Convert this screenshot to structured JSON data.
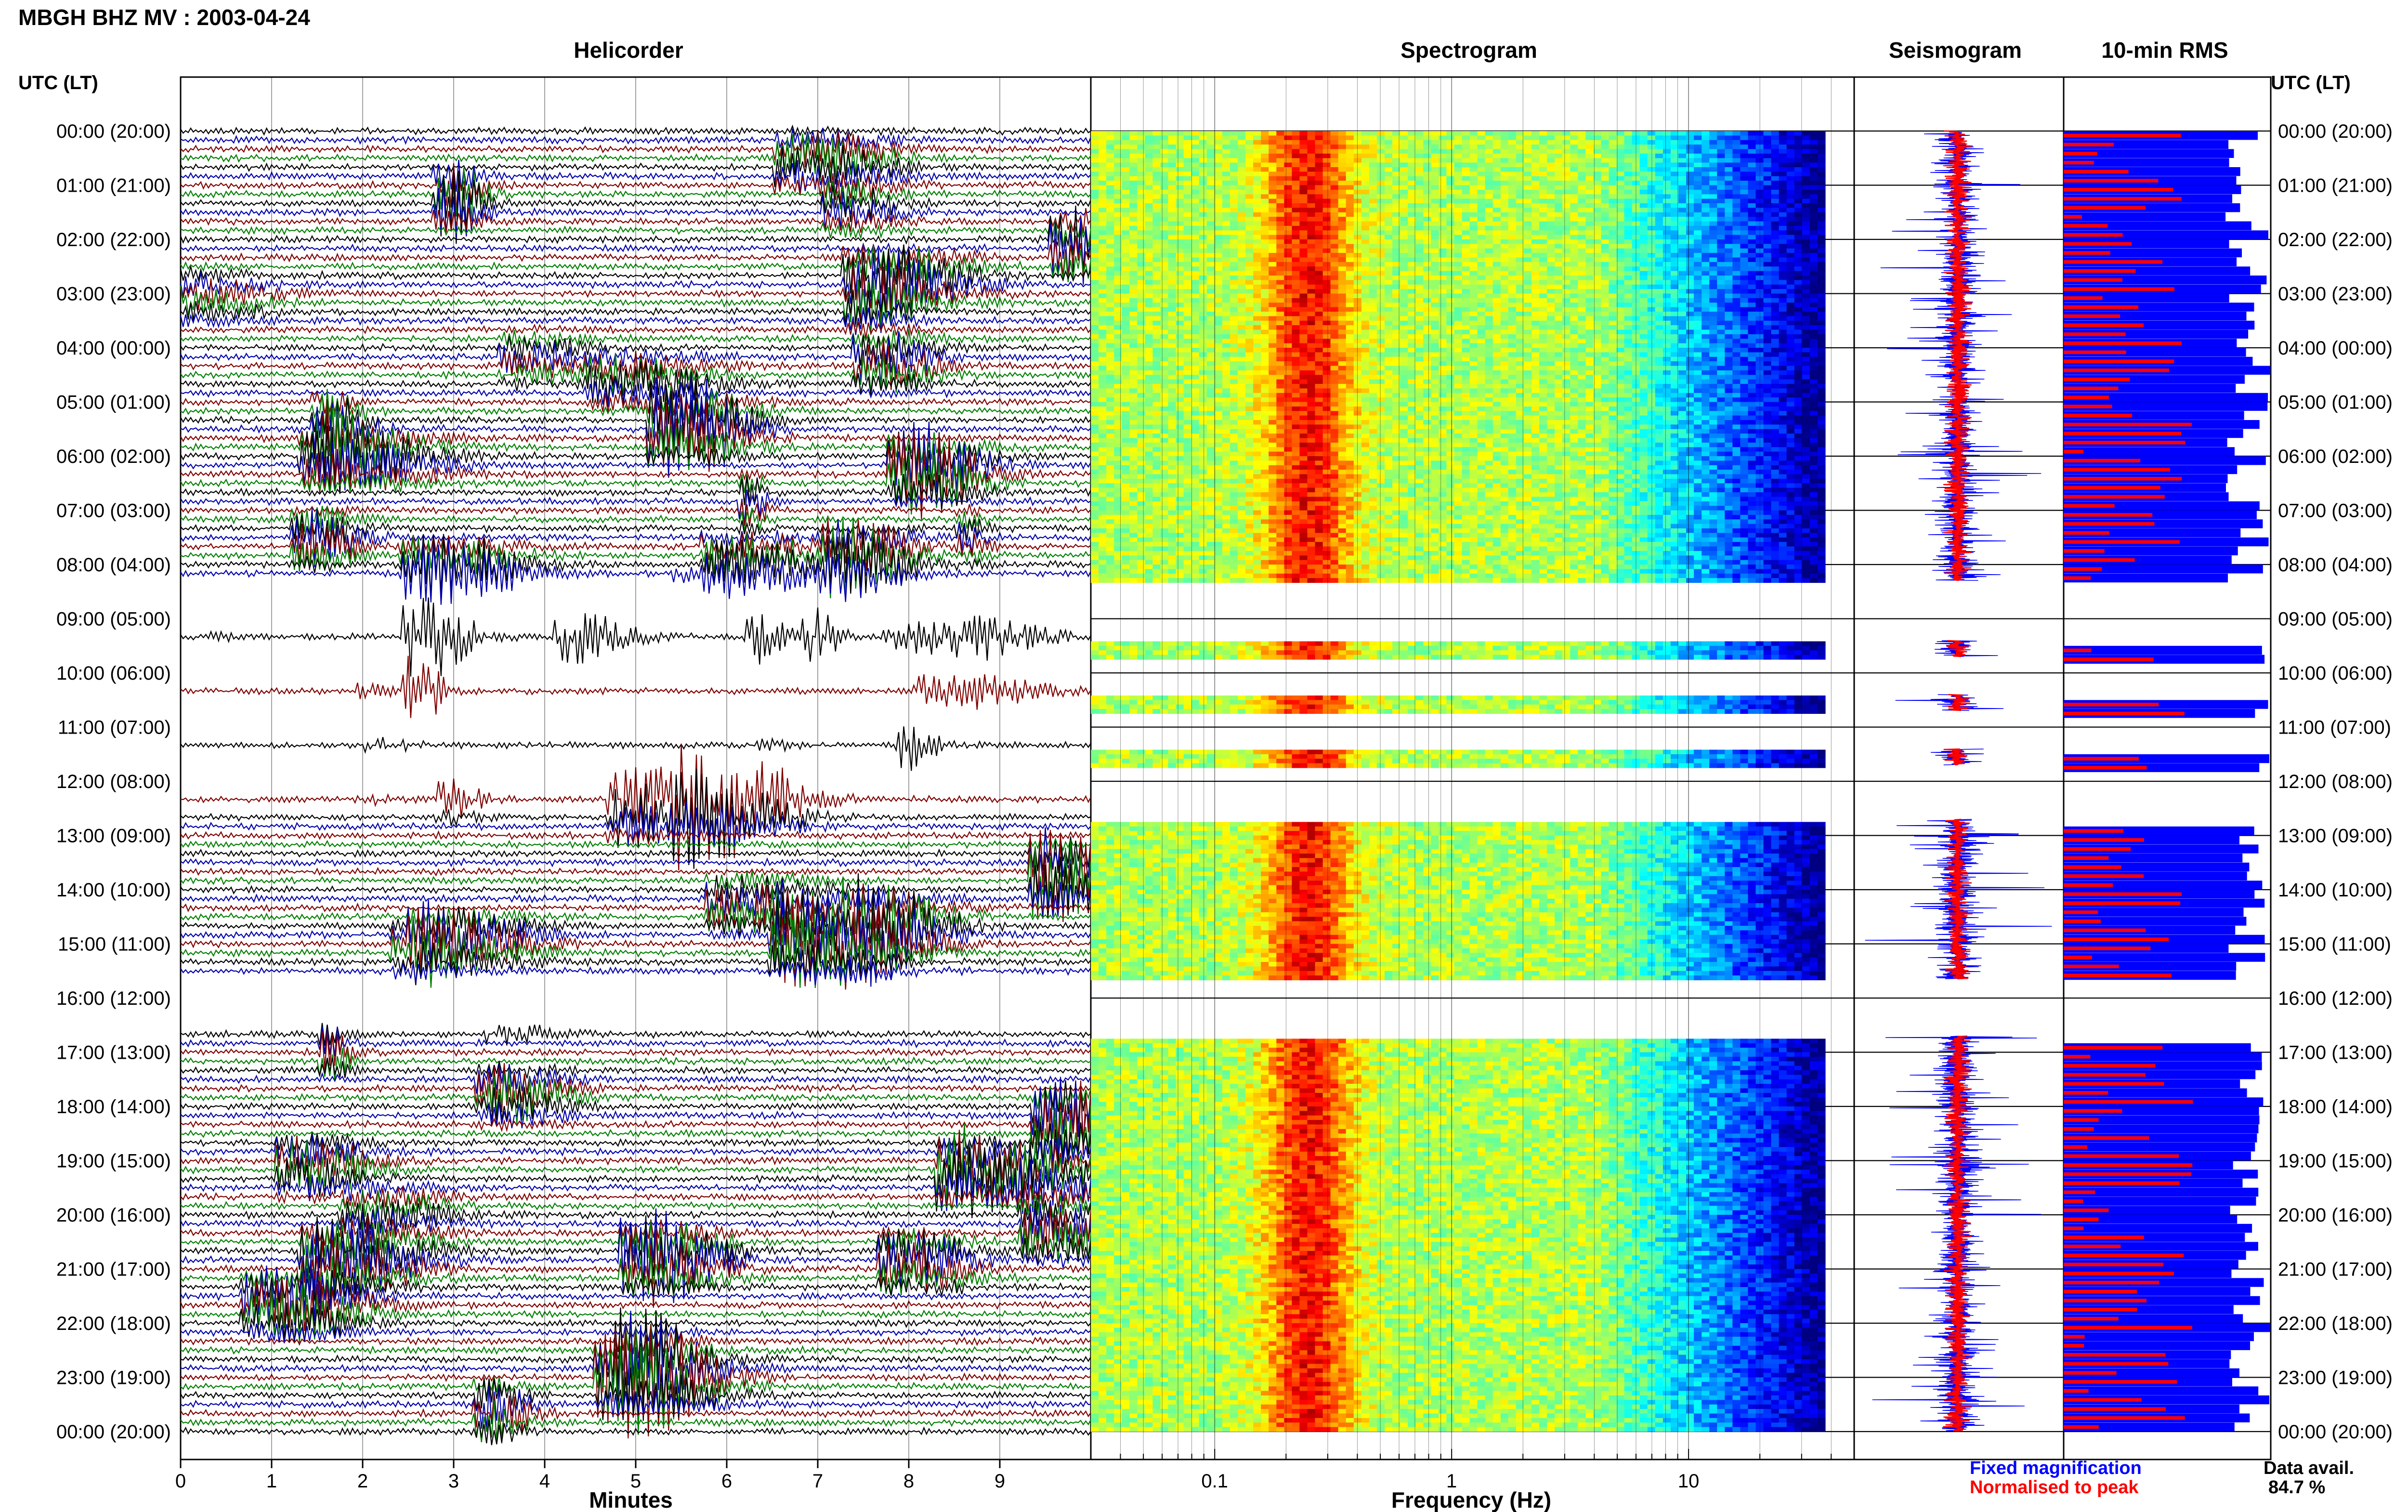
{
  "header": {
    "title": "MBGH BHZ MV : 2003-04-24"
  },
  "panels": {
    "helicorder": "Helicorder",
    "spectrogram": "Spectrogram",
    "seismogram": "Seismogram",
    "rms": "10-min RMS"
  },
  "time_axis_label": "UTC (LT)",
  "time_axis_label_right": "UTC (LT)",
  "legend": {
    "fixed": "Fixed magnification",
    "normalised": "Normalised to peak",
    "data_avail_label": "Data avail.",
    "data_avail_value": "84.7 %"
  },
  "colors": {
    "helicorder_traces": [
      "#000000",
      "#0000aa",
      "#7f0000",
      "#007f00"
    ],
    "fixed": "#0000ff",
    "normalised": "#ff0000"
  },
  "chart_data": [
    {
      "type": "helicorder",
      "title": "Helicorder",
      "xlabel": "Minutes",
      "x_ticks": [
        "0",
        "1",
        "2",
        "3",
        "4",
        "5",
        "6",
        "7",
        "8",
        "9"
      ],
      "xlim": [
        0,
        10
      ],
      "y_labels": [
        "00:00 (20:00)",
        "01:00 (21:00)",
        "02:00 (22:00)",
        "03:00 (23:00)",
        "04:00 (00:00)",
        "05:00 (01:00)",
        "06:00 (02:00)",
        "07:00 (03:00)",
        "08:00 (04:00)",
        "09:00 (05:00)",
        "10:00 (06:00)",
        "11:00 (07:00)",
        "12:00 (08:00)",
        "13:00 (09:00)",
        "14:00 (10:00)",
        "15:00 (11:00)",
        "16:00 (12:00)",
        "17:00 (13:00)",
        "18:00 (14:00)",
        "19:00 (15:00)",
        "20:00 (16:00)",
        "21:00 (17:00)",
        "22:00 (18:00)",
        "23:00 (19:00)",
        "00:00 (20:00)"
      ],
      "data_gaps_utc_hours": [
        [
          8.3,
          9.2
        ],
        [
          9.45,
          10.2
        ],
        [
          10.4,
          11.2
        ],
        [
          11.4,
          12.2
        ],
        [
          12.4,
          12.6
        ],
        [
          15.65,
          16.6
        ]
      ]
    },
    {
      "type": "heatmap",
      "title": "Spectrogram",
      "xlabel": "Frequency (Hz)",
      "x_scale": "log",
      "x_ticks": [
        "0.1",
        "1",
        "10"
      ],
      "xlim": [
        0.03,
        50
      ],
      "data_gaps_utc_hours": [
        [
          8.3,
          9.4
        ],
        [
          9.7,
          10.4
        ],
        [
          10.7,
          11.4
        ],
        [
          11.7,
          12.7
        ],
        [
          15.65,
          16.7
        ]
      ]
    },
    {
      "type": "line",
      "title": "Seismogram",
      "series": [
        {
          "name": "Fixed magnification",
          "color": "#0000ff"
        },
        {
          "name": "Normalised to peak",
          "color": "#ff0000"
        }
      ],
      "data_gaps_utc_hours": [
        [
          8.3,
          9.4
        ],
        [
          9.7,
          10.4
        ],
        [
          10.7,
          11.4
        ],
        [
          11.7,
          12.7
        ],
        [
          15.65,
          16.7
        ]
      ]
    },
    {
      "type": "bar",
      "title": "10-min RMS",
      "orientation": "horizontal",
      "bin_minutes": 10,
      "series": [
        {
          "name": "Fixed magnification",
          "color": "#0000ff"
        },
        {
          "name": "Normalised to peak",
          "color": "#ff0000"
        }
      ],
      "data_gaps_utc_hours": [
        [
          8.3,
          9.4
        ],
        [
          9.7,
          10.4
        ],
        [
          10.7,
          11.4
        ],
        [
          11.7,
          12.7
        ],
        [
          15.65,
          16.7
        ]
      ]
    }
  ]
}
